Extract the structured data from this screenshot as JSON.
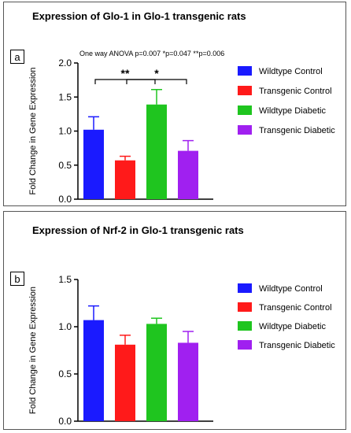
{
  "chart_data": [
    {
      "type": "bar",
      "panel_label": "a",
      "title": "Expression of Glo-1 in Glo-1 transgenic rats",
      "annotation": "One way ANOVA p=0.007 *p=0.047 **p=0.006",
      "ylabel": "Fold Change in Gene Expression",
      "xlabel": "",
      "ylim": [
        0,
        2.0
      ],
      "yticks": [
        "0.0",
        "0.5",
        "1.0",
        "1.5",
        "2.0"
      ],
      "categories": [
        "Wildtype Control",
        "Transgenic Control",
        "Wildtype Diabetic",
        "Transgenic Diabetic"
      ],
      "values": [
        1.02,
        0.57,
        1.39,
        0.71
      ],
      "errors": [
        0.19,
        0.06,
        0.22,
        0.15
      ],
      "colors": [
        "#1a1aff",
        "#ff1a1a",
        "#1fc51f",
        "#a020f0"
      ],
      "significance": [
        {
          "from": 1,
          "to": 2,
          "label": "**"
        },
        {
          "from": 2,
          "to": 3,
          "label": "*"
        }
      ],
      "legend": [
        "Wildtype Control",
        "Transgenic Control",
        "Wildtype Diabetic",
        "Transgenic Diabetic"
      ],
      "legend_position": "right"
    },
    {
      "type": "bar",
      "panel_label": "b",
      "title": "Expression of Nrf-2 in Glo-1 transgenic rats",
      "ylabel": "Fold Change in Gene Expression",
      "xlabel": "",
      "ylim": [
        0,
        1.5
      ],
      "yticks": [
        "0.0",
        "0.5",
        "1.0",
        "1.5"
      ],
      "categories": [
        "Wildtype Control",
        "Transgenic Control",
        "Wildtype Diabetic",
        "Transgenic Diabetic"
      ],
      "values": [
        1.07,
        0.81,
        1.03,
        0.83
      ],
      "errors": [
        0.15,
        0.1,
        0.06,
        0.12
      ],
      "colors": [
        "#1a1aff",
        "#ff1a1a",
        "#1fc51f",
        "#a020f0"
      ],
      "legend": [
        "Wildtype Control",
        "Transgenic Control",
        "Wildtype Diabetic",
        "Transgenic Diabetic"
      ],
      "legend_position": "right"
    }
  ]
}
